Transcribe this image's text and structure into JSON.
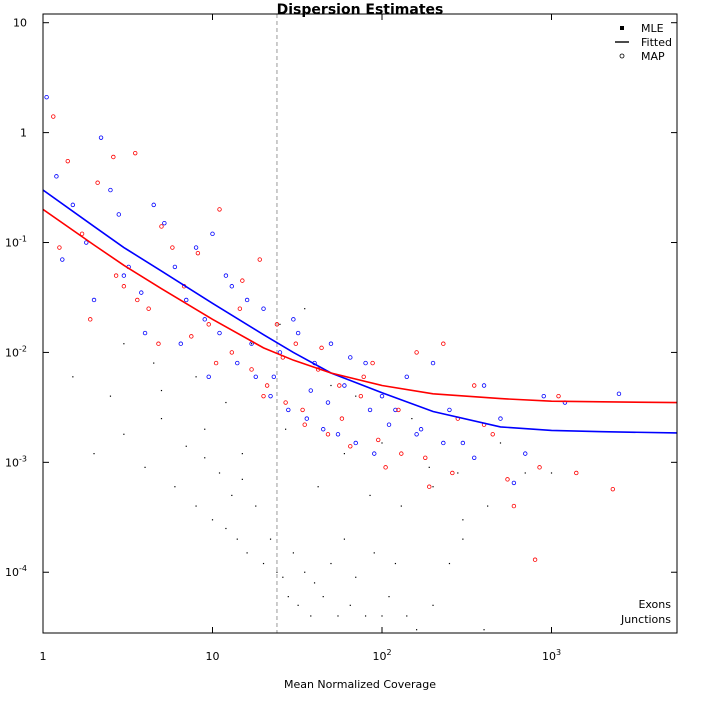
{
  "chart_data": {
    "type": "scatter",
    "title": "Dispersion Estimates",
    "xlabel": "Mean Normalized Coverage",
    "ylabel": "",
    "x_scale": "log",
    "y_scale": "log",
    "xlim": [
      1,
      5500
    ],
    "ylim": [
      2.8e-05,
      12
    ],
    "x_ticks": [
      {
        "value": 1,
        "base": "1",
        "exp": ""
      },
      {
        "value": 10,
        "base": "10",
        "exp": ""
      },
      {
        "value": 100,
        "base": "10",
        "exp": "2"
      },
      {
        "value": 1000,
        "base": "10",
        "exp": "3"
      }
    ],
    "y_ticks": [
      {
        "value": 10,
        "base": "10",
        "exp": ""
      },
      {
        "value": 1,
        "base": "1",
        "exp": ""
      },
      {
        "value": 0.1,
        "base": "10",
        "exp": "-1"
      },
      {
        "value": 0.01,
        "base": "10",
        "exp": "-2"
      },
      {
        "value": 0.001,
        "base": "10",
        "exp": "-3"
      },
      {
        "value": 0.0001,
        "base": "10",
        "exp": "-4"
      }
    ],
    "reference_line": {
      "x": 24,
      "style": "dashed",
      "color": "#aaaaaa"
    },
    "legend": {
      "position": "top-right",
      "entries": [
        {
          "label": "MLE",
          "symbol": "filled-square"
        },
        {
          "label": "Fitted",
          "symbol": "line"
        },
        {
          "label": "MAP",
          "symbol": "open-circle"
        }
      ]
    },
    "group_legend": {
      "position": "bottom-right",
      "entries": [
        {
          "label": "Exons",
          "color": "#0000ff"
        },
        {
          "label": "Junctions",
          "color": "#ff0000"
        }
      ]
    },
    "series": [
      {
        "name": "Exons",
        "kind": "fitted",
        "color": "#0000ff",
        "x": [
          1,
          2,
          3,
          5,
          10,
          20,
          30,
          50,
          100,
          200,
          500,
          1000,
          2000,
          5500
        ],
        "y": [
          0.3,
          0.14,
          0.09,
          0.055,
          0.028,
          0.0145,
          0.01,
          0.0065,
          0.0043,
          0.0029,
          0.0021,
          0.00195,
          0.0019,
          0.00185
        ]
      },
      {
        "name": "Junctions",
        "kind": "fitted",
        "color": "#ff0000",
        "x": [
          1,
          2,
          3,
          5,
          10,
          20,
          30,
          50,
          100,
          200,
          500,
          1000,
          2000,
          5500
        ],
        "y": [
          0.2,
          0.095,
          0.062,
          0.038,
          0.02,
          0.011,
          0.0085,
          0.0065,
          0.005,
          0.0042,
          0.0038,
          0.0036,
          0.00355,
          0.0035
        ]
      },
      {
        "name": "Exons",
        "kind": "MAP",
        "color": "#0000ff",
        "x": [
          1.05,
          1.2,
          1.5,
          1.8,
          2.2,
          2.5,
          2.8,
          3.2,
          3.8,
          4.5,
          5.2,
          6,
          7,
          8,
          9,
          10,
          11,
          12,
          14,
          16,
          18,
          20,
          22,
          25,
          28,
          32,
          36,
          40,
          45,
          50,
          55,
          60,
          70,
          80,
          90,
          100,
          120,
          140,
          170,
          200,
          250,
          300,
          400,
          500,
          700,
          900,
          1200,
          2500,
          1.3,
          2.0,
          3.0,
          4.0,
          6.5,
          9.5,
          13,
          17,
          23,
          30,
          38,
          48,
          65,
          85,
          110,
          160,
          230,
          350,
          600
        ],
        "y": [
          2.1,
          0.4,
          0.22,
          0.1,
          0.9,
          0.3,
          0.18,
          0.06,
          0.035,
          0.22,
          0.15,
          0.06,
          0.03,
          0.09,
          0.02,
          0.12,
          0.015,
          0.05,
          0.008,
          0.03,
          0.006,
          0.025,
          0.004,
          0.01,
          0.003,
          0.015,
          0.0025,
          0.008,
          0.002,
          0.012,
          0.0018,
          0.005,
          0.0015,
          0.008,
          0.0012,
          0.004,
          0.003,
          0.006,
          0.002,
          0.008,
          0.003,
          0.0015,
          0.005,
          0.0025,
          0.0012,
          0.004,
          0.0035,
          0.0042,
          0.07,
          0.03,
          0.05,
          0.015,
          0.012,
          0.006,
          0.04,
          0.012,
          0.006,
          0.02,
          0.0045,
          0.0035,
          0.009,
          0.003,
          0.0022,
          0.0018,
          0.0015,
          0.0011,
          0.00065
        ]
      },
      {
        "name": "Junctions",
        "kind": "MAP",
        "color": "#ff0000",
        "x": [
          1.15,
          1.4,
          1.7,
          2.1,
          2.6,
          3,
          3.5,
          4.2,
          5,
          5.8,
          6.8,
          8.2,
          9.5,
          11,
          13,
          15,
          17,
          19,
          21,
          24,
          27,
          31,
          35,
          42,
          48,
          56,
          65,
          75,
          88,
          105,
          130,
          160,
          190,
          230,
          280,
          350,
          450,
          600,
          800,
          1100,
          1400,
          2300,
          1.25,
          1.9,
          2.7,
          3.6,
          4.8,
          7.5,
          10.5,
          14.5,
          20,
          26,
          34,
          44,
          58,
          78,
          95,
          125,
          180,
          260,
          400,
          550,
          850
        ],
        "y": [
          1.4,
          0.55,
          0.12,
          0.35,
          0.6,
          0.04,
          0.65,
          0.025,
          0.14,
          0.09,
          0.04,
          0.08,
          0.018,
          0.2,
          0.01,
          0.045,
          0.007,
          0.07,
          0.005,
          0.018,
          0.0035,
          0.012,
          0.0022,
          0.007,
          0.0018,
          0.005,
          0.0014,
          0.004,
          0.008,
          0.0009,
          0.0012,
          0.01,
          0.0006,
          0.012,
          0.0025,
          0.005,
          0.0018,
          0.0004,
          0.00013,
          0.004,
          0.0008,
          0.00057,
          0.09,
          0.02,
          0.05,
          0.03,
          0.012,
          0.014,
          0.008,
          0.025,
          0.004,
          0.009,
          0.003,
          0.011,
          0.0025,
          0.006,
          0.0016,
          0.003,
          0.0011,
          0.0008,
          0.0022,
          0.0007,
          0.0009
        ]
      },
      {
        "name": "MLE",
        "kind": "MLE",
        "color": "#000000",
        "x": [
          1.5,
          2,
          2.5,
          3,
          4,
          5,
          6,
          7,
          8,
          9,
          10,
          11,
          12,
          13,
          14,
          15,
          16,
          18,
          20,
          22,
          24,
          26,
          28,
          30,
          32,
          35,
          38,
          40,
          45,
          50,
          55,
          60,
          65,
          70,
          80,
          90,
          100,
          110,
          120,
          140,
          160,
          200,
          250,
          300,
          400,
          500,
          700,
          1000,
          3,
          5,
          8,
          12,
          17,
          25,
          35,
          50,
          70,
          100,
          150,
          200,
          300,
          4.5,
          9,
          15,
          27,
          42,
          60,
          85,
          130,
          190,
          280,
          420
        ],
        "y": [
          0.006,
          0.0012,
          0.004,
          0.0018,
          0.0009,
          0.0045,
          0.0006,
          0.0014,
          0.0004,
          0.0011,
          0.0003,
          0.0008,
          0.00025,
          0.0005,
          0.0002,
          0.0007,
          0.00015,
          0.0004,
          0.00012,
          0.0002,
          0.0001,
          9e-05,
          6e-05,
          0.00015,
          5e-05,
          0.0001,
          4e-05,
          8e-05,
          6e-05,
          0.00012,
          4e-05,
          0.0002,
          5e-05,
          9e-05,
          4e-05,
          0.00015,
          4e-05,
          6e-05,
          0.00012,
          4e-05,
          3e-05,
          5e-05,
          0.00012,
          0.0002,
          3e-05,
          0.0015,
          0.0008,
          0.0008,
          0.012,
          0.0025,
          0.006,
          0.0035,
          0.012,
          0.018,
          0.025,
          0.005,
          0.004,
          0.0015,
          0.0025,
          0.0006,
          0.0003,
          0.008,
          0.002,
          0.0012,
          0.002,
          0.0006,
          0.0012,
          0.0005,
          0.0004,
          0.0009,
          0.0008,
          0.0004
        ]
      }
    ]
  }
}
